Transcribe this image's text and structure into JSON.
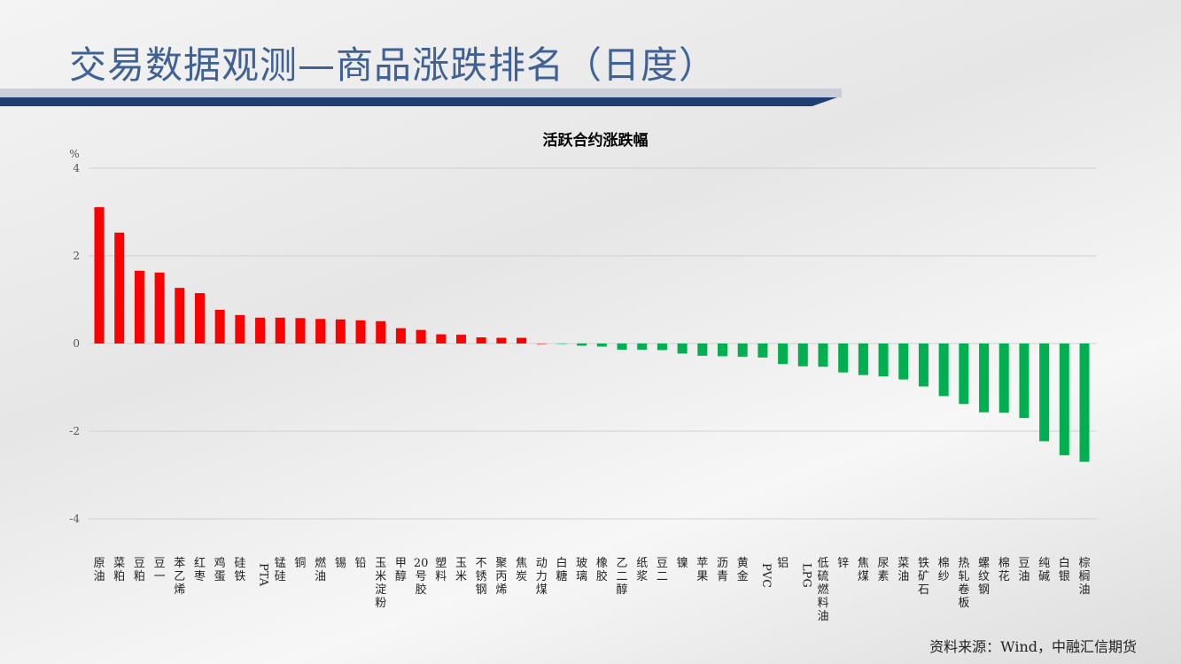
{
  "header": {
    "title": "交易数据观测—商品涨跌排名（日度）"
  },
  "footer": {
    "source": "资料来源：Wind，中融汇信期货"
  },
  "colors": {
    "positive": "#ff0000",
    "negative": "#00b050",
    "title": "#3f6193",
    "bar": "#1f3f73"
  },
  "chart_data": {
    "type": "bar",
    "title": "活跃合约涨跌幅",
    "ylabel": "%",
    "ylim": [
      -4,
      4
    ],
    "yticks": [
      4,
      2,
      0,
      -2,
      -4
    ],
    "grid": true,
    "categories": [
      "原油",
      "菜粕",
      "豆粕",
      "豆一",
      "苯乙烯",
      "红枣",
      "鸡蛋",
      "硅铁",
      "PTA",
      "锰硅",
      "铜",
      "燃油",
      "锡",
      "铅",
      "玉米淀粉",
      "甲醇",
      "20号胶",
      "塑料",
      "玉米",
      "不锈钢",
      "聚丙烯",
      "焦炭",
      "动力煤",
      "白糖",
      "玻璃",
      "橡胶",
      "乙二醇",
      "纸浆",
      "豆二",
      "镍",
      "苹果",
      "沥青",
      "黄金",
      "PVC",
      "铝",
      "LPG",
      "低硫燃料油",
      "锌",
      "焦煤",
      "尿素",
      "菜油",
      "铁矿石",
      "棉纱",
      "热轧卷板",
      "螺纹钢",
      "棉花",
      "豆油",
      "纯碱",
      "白银",
      "棕榈油"
    ],
    "values": [
      3.11,
      2.53,
      1.66,
      1.62,
      1.27,
      1.15,
      0.77,
      0.65,
      0.59,
      0.59,
      0.58,
      0.56,
      0.55,
      0.53,
      0.51,
      0.35,
      0.31,
      0.21,
      0.2,
      0.14,
      0.13,
      0.13,
      0.0,
      -0.01,
      -0.05,
      -0.07,
      -0.14,
      -0.14,
      -0.15,
      -0.23,
      -0.28,
      -0.29,
      -0.3,
      -0.32,
      -0.47,
      -0.52,
      -0.53,
      -0.66,
      -0.72,
      -0.75,
      -0.82,
      -0.98,
      -1.2,
      -1.38,
      -1.57,
      -1.58,
      -1.7,
      -2.23,
      -2.55,
      -2.7
    ]
  }
}
